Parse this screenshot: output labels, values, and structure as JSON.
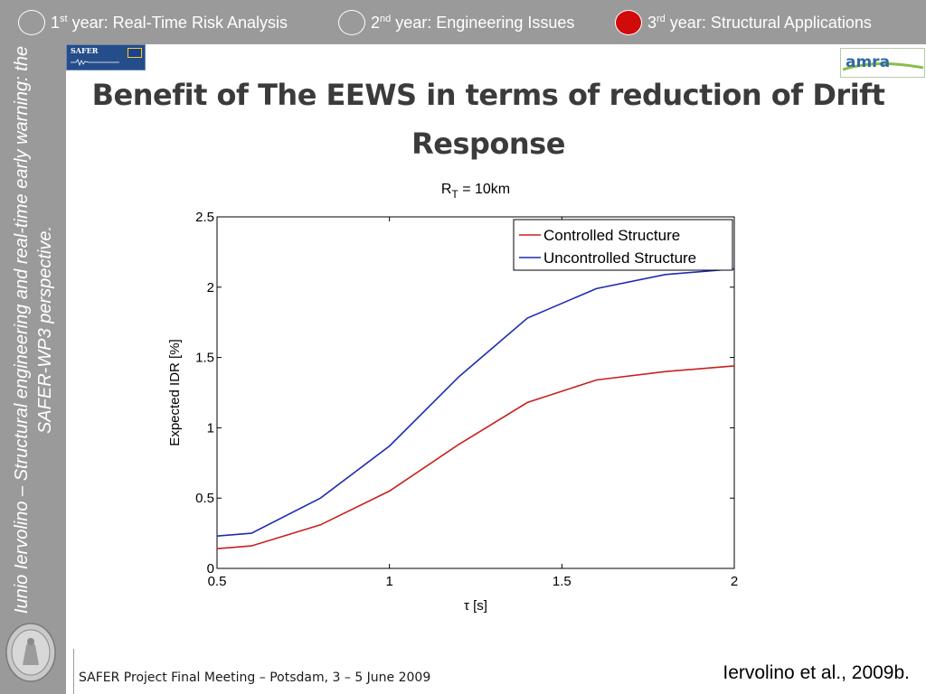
{
  "nav": {
    "items": [
      {
        "num": "1",
        "sup": "st",
        "label": " year: Real-Time Risk Analysis",
        "active": false
      },
      {
        "num": "2",
        "sup": "nd",
        "label": " year: Engineering Issues",
        "active": false
      },
      {
        "num": "3",
        "sup": "rd",
        "label": " year: Structural Applications",
        "active": true
      }
    ]
  },
  "colors": {
    "nav_bg": "#9a9a9a",
    "active_indicator": "#d10a0a",
    "controlled": "#c8201e",
    "uncontrolled": "#1f2bb0"
  },
  "sidebar": {
    "text": "Iunio Iervolino – Structural engineering and real-time early warning: the SAFER-WP3 perspective."
  },
  "logos": {
    "safer": "SAFER",
    "amra": "amra"
  },
  "slide": {
    "title": "Benefit of The EEWS in terms of reduction of Drift Response"
  },
  "footer": {
    "text": "SAFER Project Final Meeting – Potsdam, 3 – 5 June 2009"
  },
  "citation": "Iervolino et al., 2009b.",
  "chart_data": {
    "type": "line",
    "title_main": "R",
    "title_sub": "T",
    "title_rest": " = 10km",
    "xlabel": "τ [s]",
    "ylabel": "Expected IDR [%]",
    "xlim": [
      0.5,
      2
    ],
    "ylim": [
      0,
      2.5
    ],
    "xticks": [
      0.5,
      1,
      1.5,
      2
    ],
    "xtick_labels": [
      "0.5",
      "1",
      "1.5",
      "2"
    ],
    "yticks": [
      0,
      0.5,
      1,
      1.5,
      2,
      2.5
    ],
    "ytick_labels": [
      "0",
      "0.5",
      "1",
      "1.5",
      "2",
      "2.5"
    ],
    "grid": false,
    "legend_position": "top-right",
    "x": [
      0.5,
      0.6,
      0.8,
      1.0,
      1.2,
      1.4,
      1.6,
      1.8,
      2.0
    ],
    "series": [
      {
        "name": "Controlled Structure",
        "color": "#c8201e",
        "values": [
          0.14,
          0.16,
          0.31,
          0.55,
          0.88,
          1.18,
          1.34,
          1.4,
          1.44
        ]
      },
      {
        "name": "Uncontrolled Structure",
        "color": "#1f2bb0",
        "values": [
          0.23,
          0.25,
          0.5,
          0.87,
          1.36,
          1.78,
          1.99,
          2.09,
          2.13
        ]
      }
    ]
  }
}
